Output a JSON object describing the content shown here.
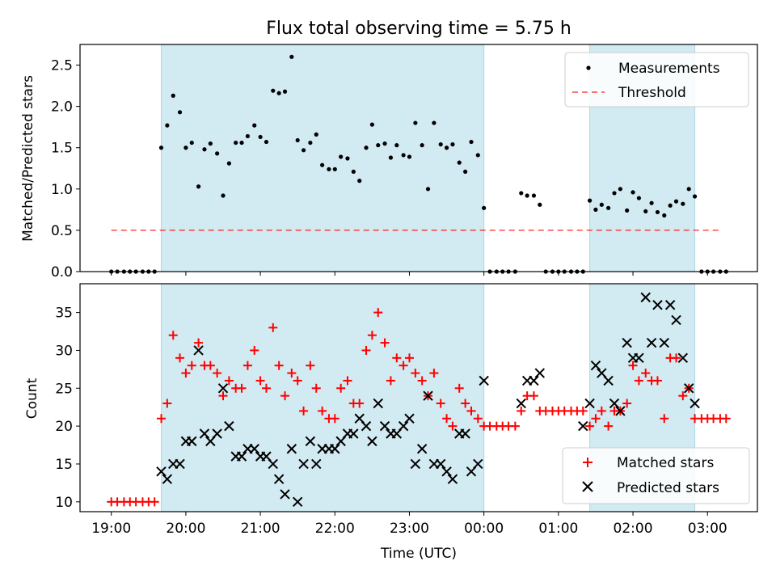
{
  "title": "Flux total observing time = 5.75 h",
  "colors": {
    "shade": "#add8e6",
    "threshold": "#ff0000",
    "matched": "#ff0000",
    "predicted": "#000000",
    "measurements": "#000000"
  },
  "chart_data": [
    {
      "type": "scatter",
      "panel": "top",
      "ylabel": "Matched/Predicted stars",
      "ylim": [
        0,
        2.75
      ],
      "yticks": [
        "0.0",
        "0.5",
        "1.0",
        "1.5",
        "2.0",
        "2.5"
      ],
      "ytick_values": [
        0,
        0.5,
        1.0,
        1.5,
        2.0,
        2.5
      ],
      "xlim_hours": [
        18.58,
        27.67
      ],
      "legend": {
        "placement": "top-right",
        "entries": [
          "Measurements",
          "Threshold"
        ]
      },
      "shaded_intervals_hours": [
        [
          19.67,
          24.0
        ],
        [
          25.42,
          26.83
        ]
      ],
      "threshold": {
        "name": "Threshold",
        "value": 0.5,
        "x_range_hours": [
          19.0,
          27.2
        ]
      },
      "series": [
        {
          "name": "Measurements",
          "x_hours": [
            19.0,
            19.08,
            19.17,
            19.25,
            19.33,
            19.42,
            19.5,
            19.58,
            19.67,
            19.75,
            19.83,
            19.92,
            20.0,
            20.08,
            20.17,
            20.25,
            20.33,
            20.42,
            20.5,
            20.58,
            20.67,
            20.75,
            20.83,
            20.92,
            21.0,
            21.08,
            21.17,
            21.25,
            21.33,
            21.42,
            21.5,
            21.58,
            21.67,
            21.75,
            21.83,
            21.92,
            22.0,
            22.08,
            22.17,
            22.25,
            22.33,
            22.42,
            22.5,
            22.58,
            22.67,
            22.75,
            22.83,
            22.92,
            23.0,
            23.08,
            23.17,
            23.25,
            23.33,
            23.42,
            23.5,
            23.58,
            23.67,
            23.75,
            23.83,
            23.92,
            24.0,
            24.08,
            24.17,
            24.25,
            24.33,
            24.42,
            24.5,
            24.58,
            24.67,
            24.75,
            24.83,
            24.92,
            25.0,
            25.08,
            25.17,
            25.25,
            25.33,
            25.42,
            25.5,
            25.58,
            25.67,
            25.75,
            25.83,
            25.92,
            26.0,
            26.08,
            26.17,
            26.25,
            26.33,
            26.42,
            26.5,
            26.58,
            26.67,
            26.75,
            26.83,
            26.92,
            27.0,
            27.08,
            27.17,
            27.25
          ],
          "values": [
            0,
            0,
            0,
            0,
            0,
            0,
            0,
            0,
            1.5,
            1.77,
            2.13,
            1.93,
            1.5,
            1.56,
            1.03,
            1.48,
            1.55,
            1.43,
            0.92,
            1.31,
            1.56,
            1.56,
            1.64,
            1.77,
            1.63,
            1.57,
            2.19,
            2.16,
            2.18,
            2.6,
            1.59,
            1.47,
            1.56,
            1.66,
            1.29,
            1.24,
            1.24,
            1.39,
            1.37,
            1.21,
            1.1,
            1.5,
            1.78,
            1.53,
            1.55,
            1.38,
            1.53,
            1.41,
            1.39,
            1.8,
            1.53,
            1.0,
            1.8,
            1.54,
            1.5,
            1.54,
            1.32,
            1.21,
            1.57,
            1.41,
            0.77,
            0,
            0,
            0,
            0,
            0,
            0.95,
            0.92,
            0.92,
            0.81,
            0,
            0,
            0,
            0,
            0,
            0,
            0,
            0.86,
            0.75,
            0.81,
            0.77,
            0.95,
            1.0,
            0.74,
            0.96,
            0.89,
            0.73,
            0.83,
            0.72,
            0.68,
            0.8,
            0.85,
            0.82,
            1.0,
            0.91,
            0,
            0,
            0,
            0,
            0
          ]
        }
      ]
    },
    {
      "type": "scatter",
      "panel": "bottom",
      "ylabel": "Count",
      "xlabel": "Time (UTC)",
      "ylim": [
        8.7,
        38.8
      ],
      "yticks": [
        "10",
        "15",
        "20",
        "25",
        "30",
        "35"
      ],
      "ytick_values": [
        10,
        15,
        20,
        25,
        30,
        35
      ],
      "xlim_hours": [
        18.58,
        27.67
      ],
      "xticks": [
        "19:00",
        "20:00",
        "21:00",
        "22:00",
        "23:00",
        "00:00",
        "01:00",
        "02:00",
        "03:00"
      ],
      "xtick_hours": [
        19,
        20,
        21,
        22,
        23,
        24,
        25,
        26,
        27
      ],
      "legend": {
        "placement": "bottom-right",
        "entries": [
          "Matched stars",
          "Predicted stars"
        ]
      },
      "shaded_intervals_hours": [
        [
          19.67,
          24.0
        ],
        [
          25.42,
          26.83
        ]
      ],
      "series": [
        {
          "name": "Matched stars",
          "marker": "plus",
          "x_hours": [
            19.0,
            19.08,
            19.17,
            19.25,
            19.33,
            19.42,
            19.5,
            19.58,
            19.67,
            19.75,
            19.83,
            19.92,
            20.0,
            20.08,
            20.17,
            20.25,
            20.33,
            20.42,
            20.5,
            20.58,
            20.67,
            20.75,
            20.83,
            20.92,
            21.0,
            21.08,
            21.17,
            21.25,
            21.33,
            21.42,
            21.5,
            21.58,
            21.67,
            21.75,
            21.83,
            21.92,
            22.0,
            22.08,
            22.17,
            22.25,
            22.33,
            22.42,
            22.5,
            22.58,
            22.67,
            22.75,
            22.83,
            22.92,
            23.0,
            23.08,
            23.17,
            23.25,
            23.33,
            23.42,
            23.5,
            23.58,
            23.67,
            23.75,
            23.83,
            23.92,
            24.0,
            24.08,
            24.17,
            24.25,
            24.33,
            24.42,
            24.5,
            24.58,
            24.67,
            24.75,
            24.83,
            24.92,
            25.0,
            25.08,
            25.17,
            25.25,
            25.33,
            25.42,
            25.5,
            25.58,
            25.67,
            25.75,
            25.83,
            25.92,
            26.0,
            26.08,
            26.17,
            26.25,
            26.33,
            26.42,
            26.5,
            26.58,
            26.67,
            26.75,
            26.83,
            26.92,
            27.0,
            27.08,
            27.17,
            27.25
          ],
          "values": [
            10,
            10,
            10,
            10,
            10,
            10,
            10,
            10,
            21,
            23,
            32,
            29,
            27,
            28,
            31,
            28,
            28,
            27,
            24,
            26,
            25,
            25,
            28,
            30,
            26,
            25,
            33,
            28,
            24,
            27,
            26,
            22,
            28,
            25,
            22,
            21,
            21,
            25,
            26,
            23,
            23,
            30,
            32,
            35,
            31,
            26,
            29,
            28,
            29,
            27,
            26,
            24,
            27,
            23,
            21,
            20,
            25,
            23,
            22,
            21,
            20,
            20,
            20,
            20,
            20,
            20,
            22,
            24,
            24,
            22,
            22,
            22,
            22,
            22,
            22,
            22,
            22,
            20,
            21,
            22,
            20,
            22,
            22,
            23,
            28,
            26,
            27,
            26,
            26,
            21,
            29,
            29,
            24,
            25,
            21,
            21,
            21,
            21,
            21,
            21
          ]
        },
        {
          "name": "Predicted stars",
          "marker": "x",
          "x_hours": [
            19.67,
            19.75,
            19.83,
            19.92,
            20.0,
            20.08,
            20.17,
            20.25,
            20.33,
            20.42,
            20.5,
            20.58,
            20.67,
            20.75,
            20.83,
            20.92,
            21.0,
            21.08,
            21.17,
            21.25,
            21.33,
            21.42,
            21.5,
            21.58,
            21.67,
            21.75,
            21.83,
            21.92,
            22.0,
            22.08,
            22.17,
            22.25,
            22.33,
            22.42,
            22.5,
            22.58,
            22.67,
            22.75,
            22.83,
            22.92,
            23.0,
            23.08,
            23.17,
            23.25,
            23.33,
            23.42,
            23.5,
            23.58,
            23.67,
            23.75,
            23.83,
            23.92,
            24.0,
            24.5,
            24.58,
            24.67,
            24.75,
            25.33,
            25.42,
            25.5,
            25.58,
            25.67,
            25.75,
            25.83,
            25.92,
            26.0,
            26.08,
            26.17,
            26.25,
            26.33,
            26.42,
            26.5,
            26.58,
            26.67,
            26.75,
            26.83
          ],
          "values": [
            14,
            13,
            15,
            15,
            18,
            18,
            30,
            19,
            18,
            19,
            25,
            20,
            16,
            16,
            17,
            17,
            16,
            16,
            15,
            13,
            11,
            17,
            10,
            15,
            18,
            15,
            17,
            17,
            17,
            18,
            19,
            19,
            21,
            20,
            18,
            23,
            20,
            19,
            19,
            20,
            21,
            15,
            17,
            24,
            15,
            15,
            14,
            13,
            19,
            19,
            14,
            15,
            26,
            23,
            26,
            26,
            27,
            20,
            23,
            28,
            27,
            26,
            23,
            22,
            31,
            29,
            29,
            37,
            31,
            36,
            31,
            36,
            34,
            29,
            25,
            23
          ]
        }
      ]
    }
  ]
}
